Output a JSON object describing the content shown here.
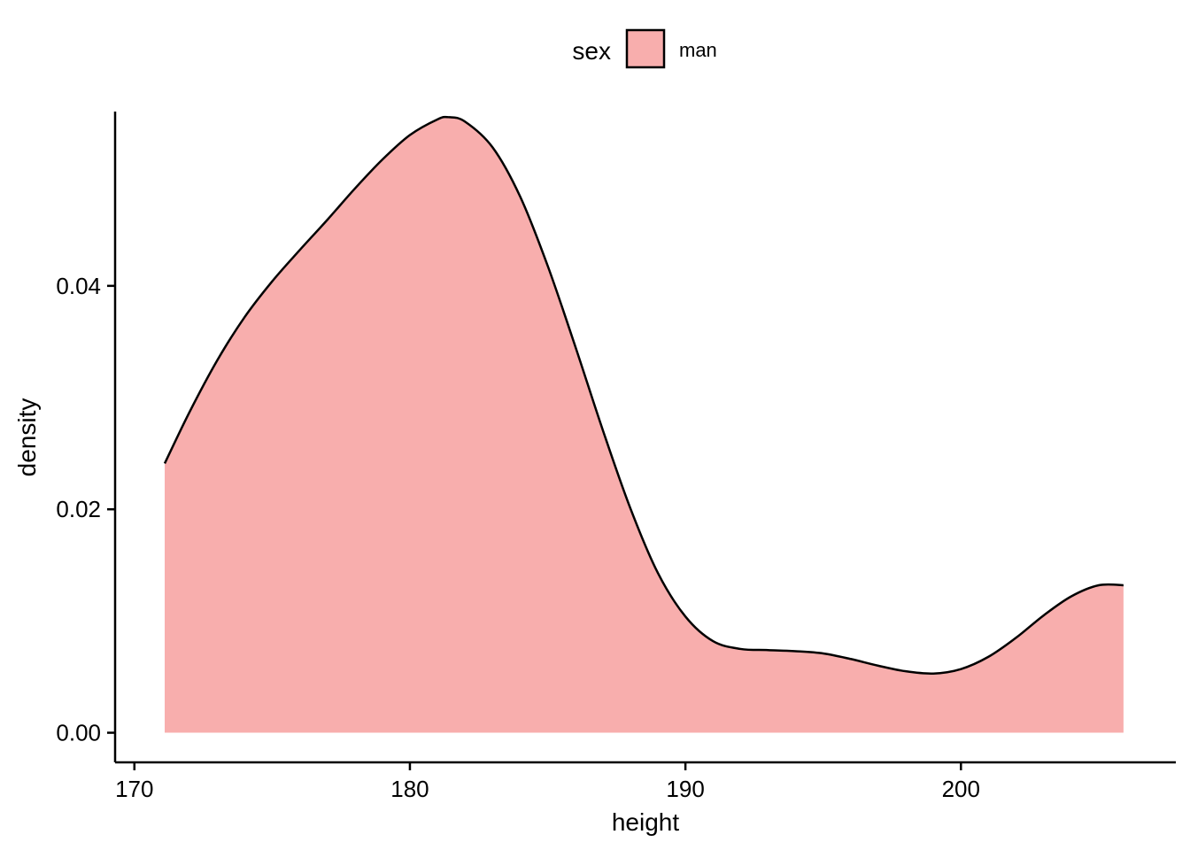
{
  "chart_data": {
    "type": "area",
    "xlabel": "height",
    "ylabel": "density",
    "xlim": [
      169.3,
      207.8
    ],
    "ylim": [
      -0.00265,
      0.0556
    ],
    "x_ticks": [
      170,
      180,
      190,
      200
    ],
    "x_tick_labels": [
      "170",
      "180",
      "190",
      "200"
    ],
    "y_ticks": [
      0.0,
      0.02,
      0.04
    ],
    "y_tick_labels": [
      "0.00",
      "0.02",
      "0.04"
    ],
    "grid": false,
    "legend": {
      "position": "top",
      "title": "sex",
      "entries": [
        {
          "label": "man",
          "color": "#F8AEAD"
        }
      ]
    },
    "series": [
      {
        "name": "man",
        "fill": "#F8AEAD",
        "stroke": "#000000",
        "x": [
          171.1,
          172,
          173,
          174,
          175,
          176,
          177,
          178,
          179,
          180,
          181,
          181.4,
          182,
          183,
          184,
          185,
          186,
          187,
          188,
          189,
          190,
          191,
          192,
          193,
          194,
          195,
          196,
          197,
          198,
          199,
          200,
          201,
          202,
          203,
          204,
          205,
          205.9
        ],
        "y": [
          0.0241,
          0.0287,
          0.0333,
          0.0372,
          0.0404,
          0.0432,
          0.0459,
          0.0487,
          0.0513,
          0.0535,
          0.0549,
          0.0551,
          0.0547,
          0.0524,
          0.048,
          0.0418,
          0.0346,
          0.0271,
          0.0201,
          0.0143,
          0.0104,
          0.0082,
          0.0075,
          0.0074,
          0.0073,
          0.0071,
          0.0066,
          0.006,
          0.0055,
          0.0053,
          0.0057,
          0.0068,
          0.0085,
          0.0105,
          0.0122,
          0.0132,
          0.0132
        ]
      }
    ]
  }
}
